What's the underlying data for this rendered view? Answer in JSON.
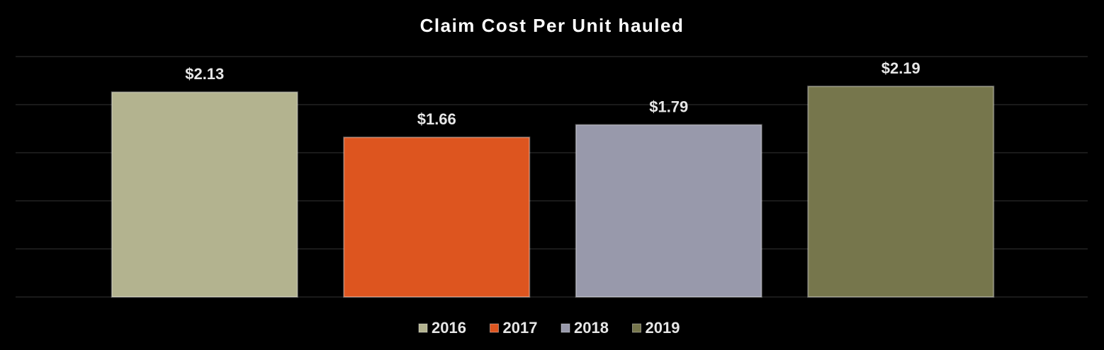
{
  "chart_data": {
    "type": "bar",
    "title": "Claim Cost Per Unit hauled",
    "series": [
      {
        "name": "2016",
        "color": "#b3b38f",
        "values": [
          2.13
        ],
        "value_labels": [
          "$2.13"
        ]
      },
      {
        "name": "2017",
        "color": "#dd551f",
        "values": [
          1.66
        ],
        "value_labels": [
          "$1.66"
        ]
      },
      {
        "name": "2018",
        "color": "#9899ab",
        "values": [
          1.79
        ],
        "value_labels": [
          "$1.79"
        ]
      },
      {
        "name": "2019",
        "color": "#76764c",
        "values": [
          2.19
        ],
        "value_labels": [
          "$2.19"
        ]
      }
    ],
    "ylim": [
      0,
      2.5
    ],
    "yticks": [
      0,
      0.5,
      1,
      1.5,
      2,
      2.5
    ],
    "grid": true,
    "legend": "bottom"
  }
}
